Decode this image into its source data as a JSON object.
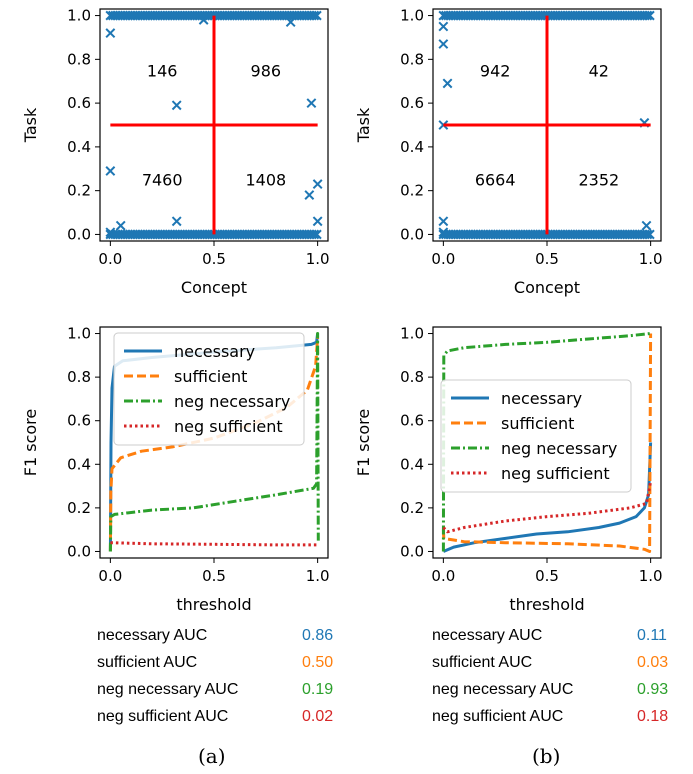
{
  "panels": [
    {
      "scatter": {
        "type": "scatter",
        "xlabel": "Concept",
        "ylabel": "Task",
        "xlim": [
          -0.05,
          1.05
        ],
        "ylim": [
          -0.03,
          1.03
        ],
        "xticks": [
          "0.0",
          "0.5",
          "1.0"
        ],
        "yticks": [
          "0.0",
          "0.2",
          "0.4",
          "0.6",
          "0.8",
          "1.0"
        ],
        "xtick_values": [
          0,
          0.5,
          1
        ],
        "ytick_values": [
          0,
          0.2,
          0.4,
          0.6,
          0.8,
          1
        ],
        "threshold_x": 0.5,
        "threshold_y": 0.5,
        "marker_color": "#1f77b4",
        "line_color": "#ff0000",
        "dense_rows": [
          0,
          1
        ],
        "points": [
          [
            0.0,
            0.92
          ],
          [
            0.0,
            0.29
          ],
          [
            0.05,
            0.04
          ],
          [
            0.32,
            0.59
          ],
          [
            0.32,
            0.06
          ],
          [
            0.45,
            0.98
          ],
          [
            0.87,
            0.97
          ],
          [
            0.97,
            0.6
          ],
          [
            0.96,
            0.18
          ],
          [
            1.0,
            0.23
          ],
          [
            1.0,
            0.06
          ],
          [
            0.0,
            0.01
          ]
        ],
        "quadrant_counts": {
          "top_left": "146",
          "top_right": "986",
          "bottom_left": "7460",
          "bottom_right": "1408"
        }
      },
      "f1": {
        "type": "line",
        "xlabel": "threshold",
        "ylabel": "F1 score",
        "xlim": [
          -0.05,
          1.05
        ],
        "ylim": [
          -0.03,
          1.03
        ],
        "xticks": [
          "0.0",
          "0.5",
          "1.0"
        ],
        "yticks": [
          "0.0",
          "0.2",
          "0.4",
          "0.6",
          "0.8",
          "1.0"
        ],
        "xtick_values": [
          0,
          0.5,
          1
        ],
        "ytick_values": [
          0,
          0.2,
          0.4,
          0.6,
          0.8,
          1
        ],
        "legend_position": "top",
        "series": [
          {
            "name": "necessary",
            "color": "#1f77b4",
            "dash": "solid",
            "points": [
              [
                0.0,
                0.0
              ],
              [
                0.003,
                0.5
              ],
              [
                0.008,
                0.75
              ],
              [
                0.02,
                0.85
              ],
              [
                0.06,
                0.875
              ],
              [
                0.2,
                0.89
              ],
              [
                0.5,
                0.915
              ],
              [
                0.8,
                0.935
              ],
              [
                0.97,
                0.95
              ],
              [
                0.995,
                0.96
              ],
              [
                1.0,
                1.0
              ]
            ]
          },
          {
            "name": "sufficient",
            "color": "#ff7f0e",
            "dash": "dashed",
            "points": [
              [
                0.0,
                0.0
              ],
              [
                0.002,
                0.27
              ],
              [
                0.008,
                0.38
              ],
              [
                0.05,
                0.43
              ],
              [
                0.15,
                0.46
              ],
              [
                0.3,
                0.48
              ],
              [
                0.5,
                0.52
              ],
              [
                0.7,
                0.59
              ],
              [
                0.85,
                0.66
              ],
              [
                0.95,
                0.74
              ],
              [
                0.99,
                0.85
              ],
              [
                1.0,
                0.98
              ]
            ]
          },
          {
            "name": "neg necessary",
            "color": "#2ca02c",
            "dash": "dashdot",
            "points": [
              [
                0.0,
                0.0
              ],
              [
                0.002,
                0.16
              ],
              [
                0.02,
                0.17
              ],
              [
                0.2,
                0.19
              ],
              [
                0.4,
                0.2
              ],
              [
                0.6,
                0.23
              ],
              [
                0.8,
                0.26
              ],
              [
                0.98,
                0.29
              ],
              [
                0.995,
                0.31
              ],
              [
                1.0,
                1.0
              ],
              [
                1.003,
                0.05
              ]
            ]
          },
          {
            "name": "neg sufficient",
            "color": "#d62728",
            "dash": "dotted",
            "points": [
              [
                0.0,
                0.04
              ],
              [
                0.2,
                0.035
              ],
              [
                0.5,
                0.033
              ],
              [
                0.8,
                0.03
              ],
              [
                1.0,
                0.03
              ]
            ]
          }
        ]
      },
      "auc": [
        {
          "label": "necessary AUC",
          "value": "0.86",
          "color": "#1f77b4"
        },
        {
          "label": "sufficient AUC",
          "value": "0.50",
          "color": "#ff7f0e"
        },
        {
          "label": "neg necessary AUC",
          "value": "0.19",
          "color": "#2ca02c"
        },
        {
          "label": "neg sufficient AUC",
          "value": "0.02",
          "color": "#d62728"
        }
      ],
      "caption": "(a)"
    },
    {
      "scatter": {
        "type": "scatter",
        "xlabel": "Concept",
        "ylabel": "Task",
        "xlim": [
          -0.05,
          1.05
        ],
        "ylim": [
          -0.03,
          1.03
        ],
        "xticks": [
          "0.0",
          "0.5",
          "1.0"
        ],
        "yticks": [
          "0.0",
          "0.2",
          "0.4",
          "0.6",
          "0.8",
          "1.0"
        ],
        "xtick_values": [
          0,
          0.5,
          1
        ],
        "ytick_values": [
          0,
          0.2,
          0.4,
          0.6,
          0.8,
          1
        ],
        "threshold_x": 0.5,
        "threshold_y": 0.5,
        "marker_color": "#1f77b4",
        "line_color": "#ff0000",
        "dense_rows": [
          0,
          1
        ],
        "points": [
          [
            0.0,
            0.95
          ],
          [
            0.0,
            0.87
          ],
          [
            0.02,
            0.69
          ],
          [
            0.0,
            0.5
          ],
          [
            0.0,
            0.06
          ],
          [
            0.97,
            0.51
          ],
          [
            0.98,
            0.04
          ],
          [
            0.0,
            0.01
          ]
        ],
        "quadrant_counts": {
          "top_left": "942",
          "top_right": "42",
          "bottom_left": "6664",
          "bottom_right": "2352"
        }
      },
      "f1": {
        "type": "line",
        "xlabel": "threshold",
        "ylabel": "F1 score",
        "xlim": [
          -0.05,
          1.05
        ],
        "ylim": [
          -0.03,
          1.03
        ],
        "xticks": [
          "0.0",
          "0.5",
          "1.0"
        ],
        "yticks": [
          "0.0",
          "0.2",
          "0.4",
          "0.6",
          "0.8",
          "1.0"
        ],
        "xtick_values": [
          0,
          0.5,
          1
        ],
        "ytick_values": [
          0,
          0.2,
          0.4,
          0.6,
          0.8,
          1
        ],
        "legend_position": "center",
        "series": [
          {
            "name": "necessary",
            "color": "#1f77b4",
            "dash": "solid",
            "points": [
              [
                0.0,
                0.0
              ],
              [
                0.05,
                0.02
              ],
              [
                0.15,
                0.04
              ],
              [
                0.3,
                0.06
              ],
              [
                0.45,
                0.08
              ],
              [
                0.6,
                0.09
              ],
              [
                0.75,
                0.11
              ],
              [
                0.85,
                0.13
              ],
              [
                0.93,
                0.16
              ],
              [
                0.97,
                0.2
              ],
              [
                0.99,
                0.26
              ],
              [
                1.0,
                0.5
              ]
            ]
          },
          {
            "name": "sufficient",
            "color": "#ff7f0e",
            "dash": "dashed",
            "points": [
              [
                0.0,
                0.1
              ],
              [
                0.002,
                0.06
              ],
              [
                0.1,
                0.045
              ],
              [
                0.3,
                0.04
              ],
              [
                0.6,
                0.035
              ],
              [
                0.85,
                0.025
              ],
              [
                0.97,
                0.01
              ],
              [
                0.995,
                0.0
              ],
              [
                1.0,
                1.0
              ]
            ]
          },
          {
            "name": "neg necessary",
            "color": "#2ca02c",
            "dash": "dashdot",
            "points": [
              [
                0.0,
                0.0
              ],
              [
                0.002,
                0.9
              ],
              [
                0.02,
                0.92
              ],
              [
                0.1,
                0.935
              ],
              [
                0.3,
                0.95
              ],
              [
                0.5,
                0.96
              ],
              [
                0.7,
                0.975
              ],
              [
                0.9,
                0.99
              ],
              [
                1.0,
                1.0
              ]
            ]
          },
          {
            "name": "neg sufficient",
            "color": "#d62728",
            "dash": "dotted",
            "points": [
              [
                0.0,
                0.11
              ],
              [
                0.02,
                0.09
              ],
              [
                0.1,
                0.11
              ],
              [
                0.3,
                0.14
              ],
              [
                0.5,
                0.16
              ],
              [
                0.7,
                0.175
              ],
              [
                0.9,
                0.2
              ],
              [
                0.98,
                0.22
              ],
              [
                1.0,
                0.32
              ]
            ]
          }
        ]
      },
      "auc": [
        {
          "label": "necessary AUC",
          "value": "0.11",
          "color": "#1f77b4"
        },
        {
          "label": "sufficient AUC",
          "value": "0.03",
          "color": "#ff7f0e"
        },
        {
          "label": "neg necessary AUC",
          "value": "0.93",
          "color": "#2ca02c"
        },
        {
          "label": "neg sufficient AUC",
          "value": "0.18",
          "color": "#d62728"
        }
      ],
      "caption": "(b)"
    }
  ]
}
